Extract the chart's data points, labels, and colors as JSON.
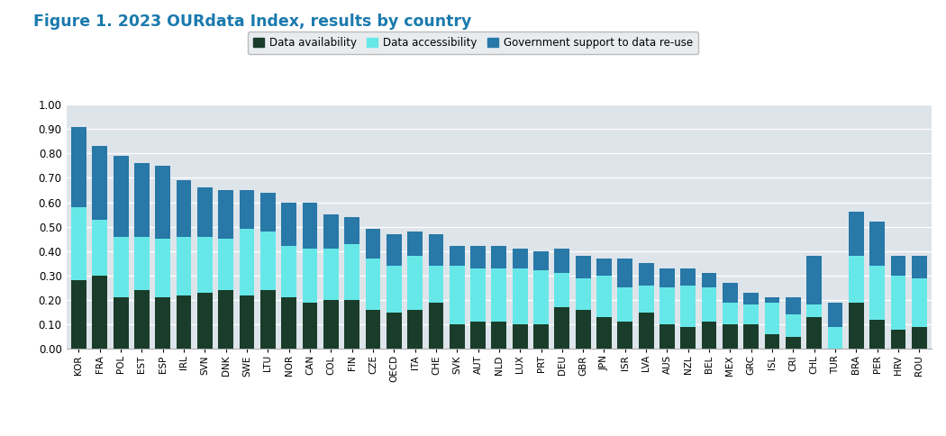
{
  "title": "Figure 1. 2023 OURdata Index, results by country",
  "title_color": "#1a7aad",
  "fig_bg_color": "#ffffff",
  "plot_bg_color": "#dde4ea",
  "categories": [
    "KOR",
    "FRA",
    "POL",
    "EST",
    "ESP",
    "IRL",
    "SVN",
    "DNK",
    "SWE",
    "LTU",
    "NOR",
    "CAN",
    "COL",
    "FIN",
    "CZE",
    "OECD",
    "ITA",
    "CHE",
    "SVK",
    "AUT",
    "NLD",
    "LUX",
    "PRT",
    "DEU",
    "GBR",
    "JPN",
    "ISR",
    "LVA",
    "AUS",
    "NZL",
    "BEL",
    "MEX",
    "GRC",
    "ISL",
    "CRI",
    "CHL",
    "TUR",
    "BRA",
    "PER",
    "HRV",
    "ROU"
  ],
  "data_availability": [
    0.28,
    0.3,
    0.21,
    0.24,
    0.21,
    0.22,
    0.23,
    0.24,
    0.22,
    0.24,
    0.21,
    0.19,
    0.2,
    0.2,
    0.16,
    0.15,
    0.16,
    0.19,
    0.1,
    0.11,
    0.11,
    0.1,
    0.1,
    0.17,
    0.16,
    0.13,
    0.11,
    0.15,
    0.1,
    0.09,
    0.11,
    0.1,
    0.1,
    0.06,
    0.05,
    0.13,
    0.0,
    0.19,
    0.12,
    0.08,
    0.09
  ],
  "data_accessibility": [
    0.3,
    0.23,
    0.25,
    0.22,
    0.24,
    0.24,
    0.23,
    0.21,
    0.27,
    0.24,
    0.21,
    0.22,
    0.21,
    0.23,
    0.21,
    0.19,
    0.22,
    0.15,
    0.24,
    0.22,
    0.22,
    0.23,
    0.22,
    0.14,
    0.13,
    0.17,
    0.14,
    0.11,
    0.15,
    0.17,
    0.14,
    0.09,
    0.08,
    0.13,
    0.09,
    0.05,
    0.09,
    0.19,
    0.22,
    0.22,
    0.2
  ],
  "gov_support": [
    0.33,
    0.3,
    0.33,
    0.3,
    0.3,
    0.23,
    0.2,
    0.2,
    0.16,
    0.16,
    0.18,
    0.19,
    0.14,
    0.11,
    0.12,
    0.13,
    0.1,
    0.13,
    0.08,
    0.09,
    0.09,
    0.08,
    0.08,
    0.1,
    0.09,
    0.07,
    0.12,
    0.09,
    0.08,
    0.07,
    0.06,
    0.08,
    0.05,
    0.02,
    0.07,
    0.2,
    0.1,
    0.18,
    0.18,
    0.08,
    0.09
  ],
  "color_availability": "#1a3d2b",
  "color_accessibility": "#67e8e8",
  "color_gov_support": "#2878a8",
  "legend_labels": [
    "Data availability",
    "Data accessibility",
    "Government support to data re-use"
  ],
  "ylim": [
    0,
    1.0
  ],
  "yticks": [
    0.0,
    0.1,
    0.2,
    0.3,
    0.4,
    0.5,
    0.6,
    0.7,
    0.8,
    0.9,
    1.0
  ],
  "grid_color": "#ffffff",
  "legend_bg": "#e8ecef",
  "legend_edge": "#bbbbbb"
}
